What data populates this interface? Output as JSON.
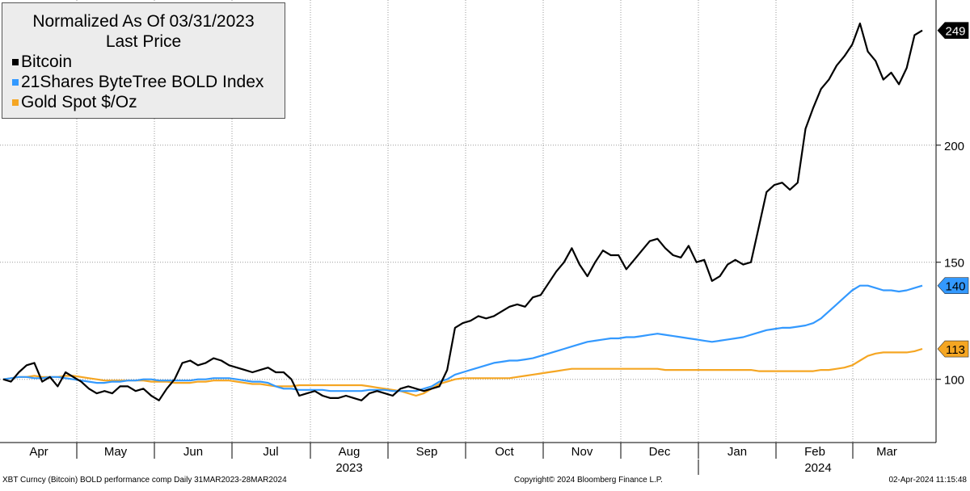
{
  "chart_data": {
    "type": "line",
    "title": "Normalized As Of 03/31/2023",
    "subtitle": "Last Price",
    "xlabel": "",
    "ylabel": "",
    "x_tick_labels": [
      "Apr",
      "May",
      "Jun",
      "Jul",
      "Aug",
      "Sep",
      "Oct",
      "Nov",
      "Dec",
      "Jan",
      "Feb",
      "Mar"
    ],
    "year_labels": [
      "2023",
      "2024"
    ],
    "y_ticks": [
      100,
      150,
      200
    ],
    "ylim": [
      73,
      262
    ],
    "x_range": [
      "2023-03-31",
      "2024-03-28"
    ],
    "grid": true,
    "legend_position": "top-left",
    "series": [
      {
        "name": "Bitcoin",
        "color": "#000000",
        "last_value": "249",
        "values": [
          100,
          99,
          103,
          106,
          107,
          99,
          101,
          97,
          103,
          101,
          99,
          96,
          94,
          95,
          94,
          97,
          97,
          95,
          96,
          93,
          91,
          96,
          100,
          107,
          108,
          106,
          107,
          109,
          108,
          106,
          105,
          104,
          103,
          104,
          105,
          103,
          103,
          100,
          93,
          94,
          95,
          93,
          92,
          92,
          93,
          92,
          91,
          94,
          95,
          94,
          93,
          96,
          97,
          96,
          95,
          96,
          97,
          104,
          122,
          124,
          125,
          127,
          126,
          127,
          129,
          131,
          132,
          131,
          135,
          136,
          141,
          146,
          150,
          156,
          149,
          144,
          150,
          155,
          153,
          153,
          147,
          151,
          155,
          159,
          160,
          156,
          153,
          152,
          157,
          150,
          151,
          142,
          144,
          149,
          151,
          149,
          150,
          165,
          180,
          183,
          184,
          181,
          184,
          207,
          216,
          224,
          228,
          234,
          238,
          243,
          252,
          240,
          236,
          228,
          231,
          226,
          233,
          247,
          249
        ]
      },
      {
        "name": "21Shares ByteTree BOLD Index",
        "color": "#3399ff",
        "last_value": "140",
        "values": [
          100,
          100.5,
          101,
          101,
          100.5,
          100.5,
          101,
          101,
          100.5,
          100,
          99.5,
          99,
          98.5,
          98.5,
          99,
          99,
          99.5,
          99.5,
          100,
          100,
          99.5,
          99.5,
          99.5,
          99.5,
          99.5,
          100,
          100,
          100.5,
          100.5,
          100.5,
          100,
          99.5,
          99,
          99,
          98.5,
          97,
          96,
          96,
          95.5,
          95.5,
          95.5,
          95.5,
          95,
          95,
          95,
          95,
          95,
          95.5,
          95.5,
          95.5,
          95,
          95,
          95,
          95,
          96,
          97,
          99,
          100,
          102,
          103,
          104,
          105,
          106,
          107,
          107.5,
          108,
          108,
          108.5,
          109,
          110,
          111,
          112,
          113,
          114,
          115,
          116,
          116.5,
          117,
          117.5,
          117.5,
          118,
          118,
          118.5,
          119,
          119.5,
          119,
          118.5,
          118,
          117.5,
          117,
          116.5,
          116,
          116.5,
          117,
          117.5,
          118,
          119,
          120,
          121,
          121.5,
          122,
          122,
          122.5,
          123,
          124,
          126,
          129,
          132,
          135,
          138,
          140,
          140,
          139,
          138,
          138,
          137.5,
          138,
          139,
          140
        ]
      },
      {
        "name": "Gold Spot $/Oz",
        "color": "#f5a623",
        "last_value": "113",
        "values": [
          100,
          100.5,
          101,
          101,
          101.5,
          101,
          101,
          101,
          101.5,
          101.5,
          101,
          100.5,
          100,
          99.5,
          99.5,
          99.5,
          99.5,
          99.5,
          99.5,
          99,
          99,
          99,
          98.5,
          98.5,
          98.5,
          99,
          99,
          99.5,
          99.5,
          99.5,
          99,
          98.5,
          98,
          98,
          97.5,
          97,
          97,
          97,
          97.5,
          97.5,
          97.5,
          97.5,
          97.5,
          97.5,
          97.5,
          97.5,
          97.5,
          97,
          96.5,
          96,
          95.5,
          95,
          94,
          93,
          94,
          96,
          98,
          99,
          100,
          100.5,
          100.5,
          100.5,
          100.5,
          100.5,
          100.5,
          100.5,
          101,
          101.5,
          102,
          102.5,
          103,
          103.5,
          104,
          104.5,
          104.5,
          104.5,
          104.5,
          104.5,
          104.5,
          104.5,
          104.5,
          104.5,
          104.5,
          104.5,
          104.5,
          104,
          104,
          104,
          104,
          104,
          104,
          104,
          104,
          104,
          104,
          104,
          104,
          103.5,
          103.5,
          103.5,
          103.5,
          103.5,
          103.5,
          103.5,
          103.5,
          104,
          104,
          104.5,
          105,
          106,
          108,
          110,
          111,
          111.5,
          111.5,
          111.5,
          111.5,
          112,
          113
        ]
      }
    ]
  },
  "footer": {
    "left": "XBT Curncy (Bitcoin) BOLD performance comp  Daily 31MAR2023-28MAR2024",
    "center": "Copyright© 2024 Bloomberg Finance L.P.",
    "right": "02-Apr-2024 11:15:48"
  }
}
